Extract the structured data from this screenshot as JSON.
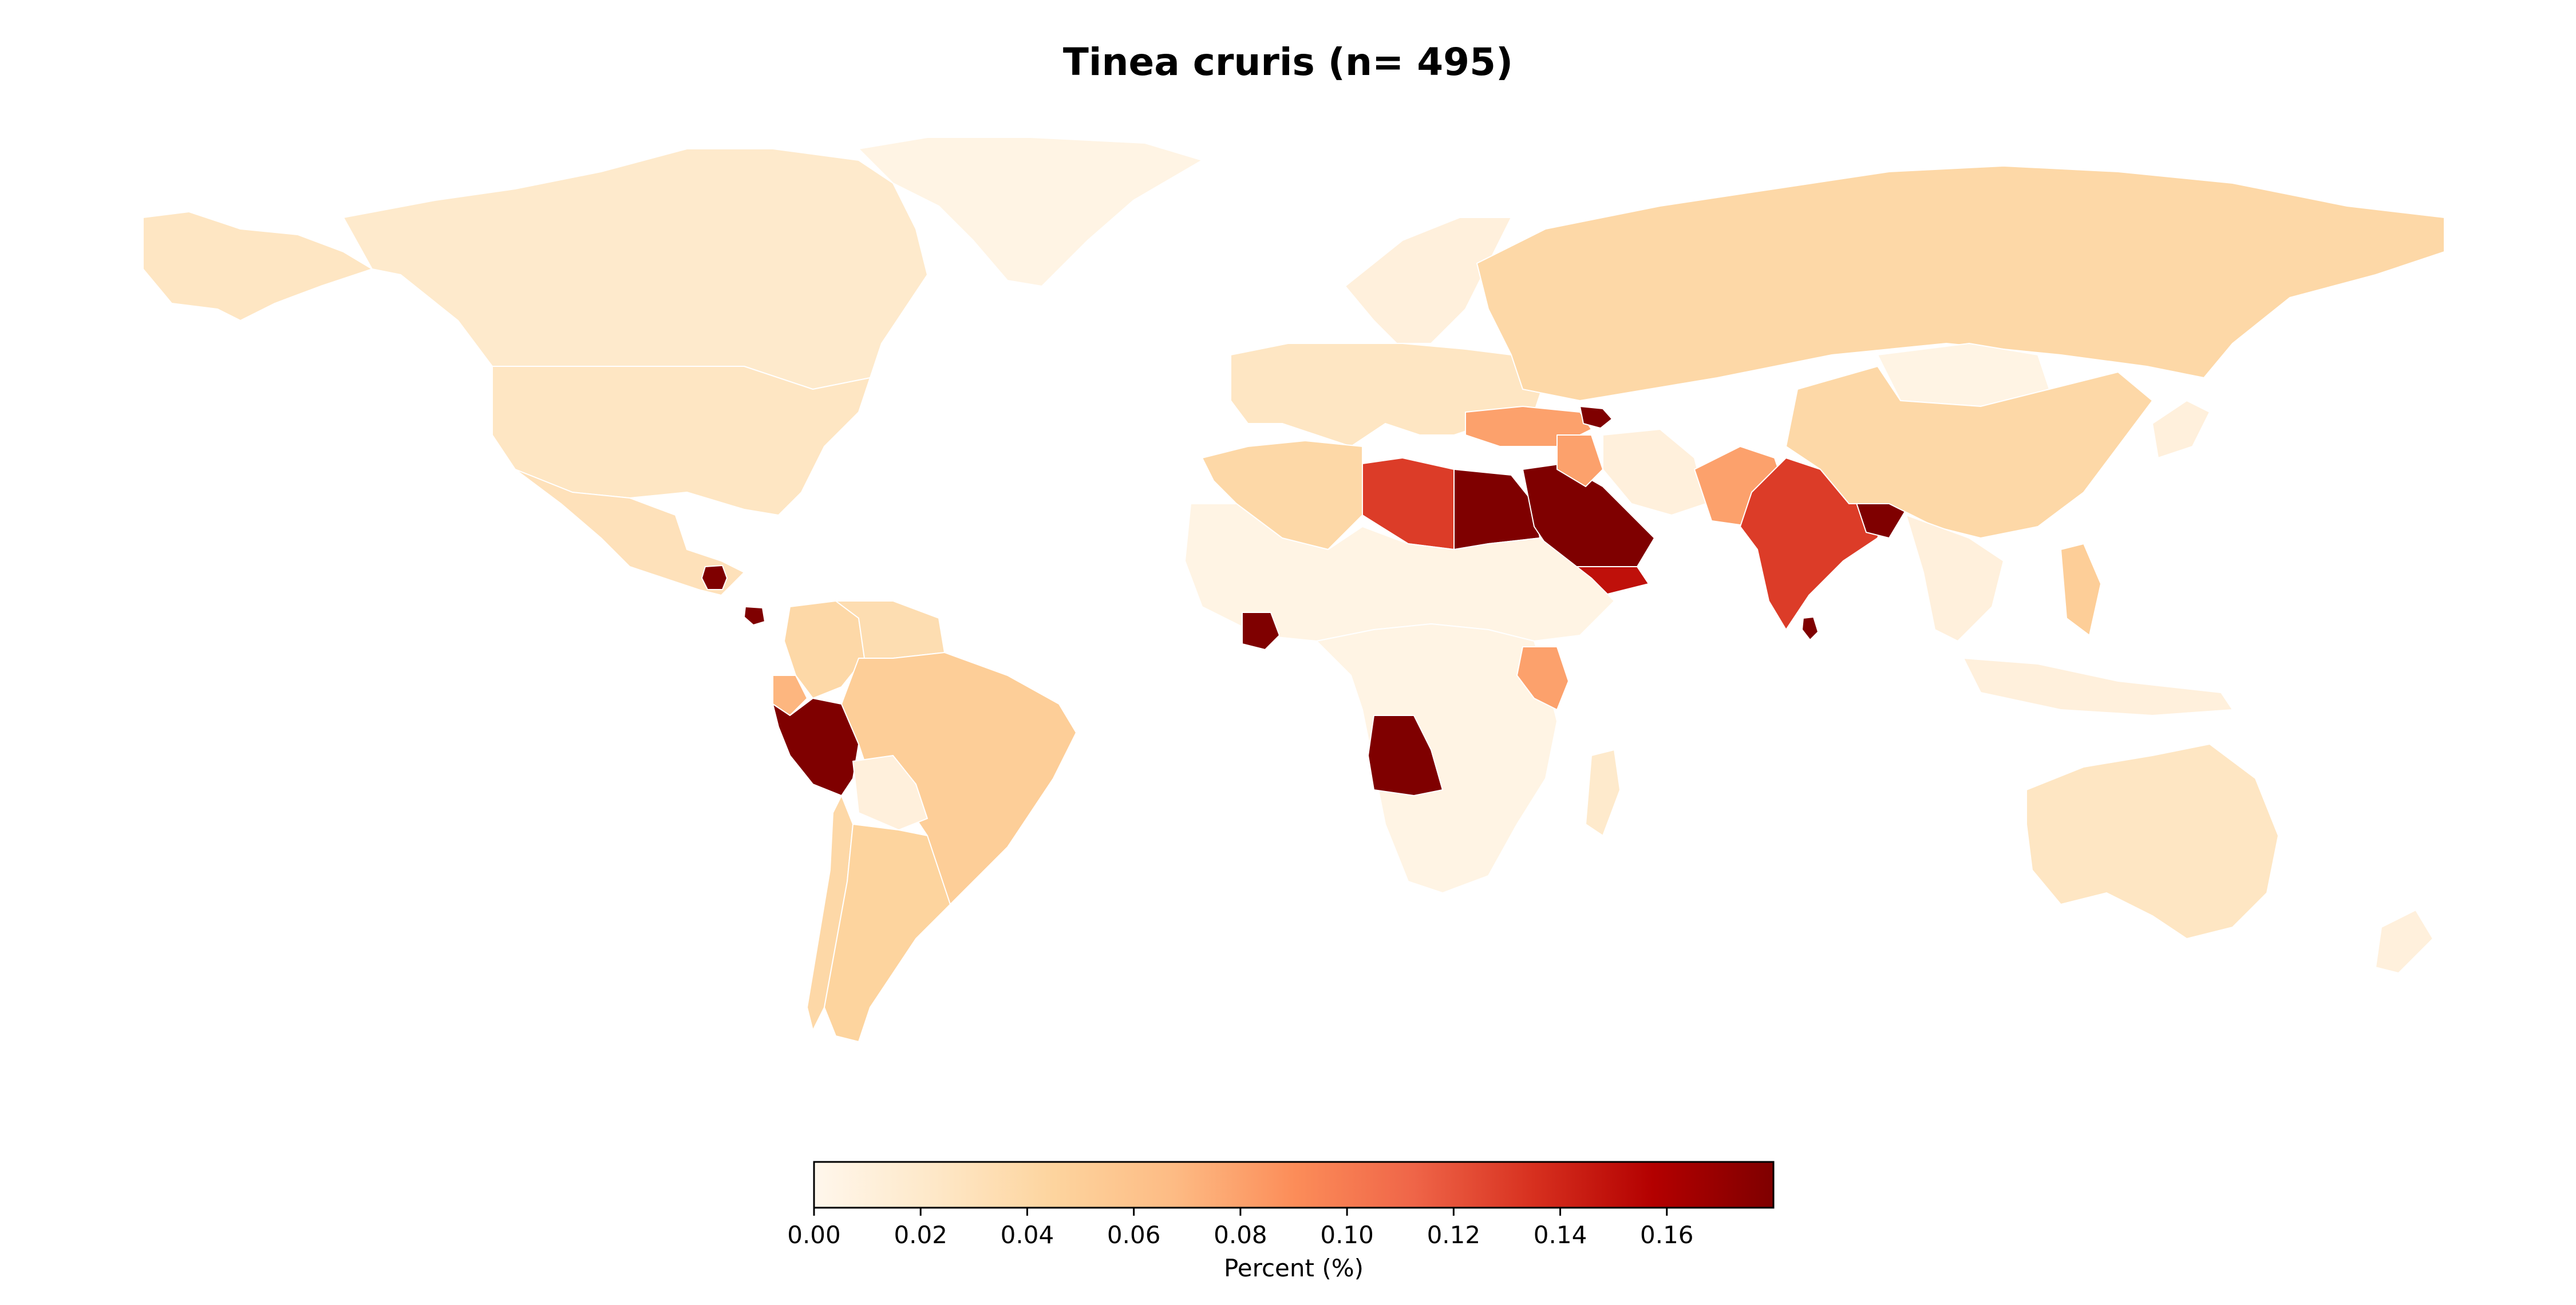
{
  "title": "Tinea cruris (n= 495)",
  "colorbar": {
    "label": "Percent (%)",
    "min": 0.0,
    "max": 0.18,
    "ticks": [
      "0.00",
      "0.02",
      "0.04",
      "0.06",
      "0.08",
      "0.10",
      "0.12",
      "0.14",
      "0.16"
    ],
    "colormap": "OrRd",
    "stops": [
      "#fff7ec",
      "#fee8c8",
      "#fdd49e",
      "#fdbb84",
      "#fc8d59",
      "#ef6548",
      "#d7301f",
      "#b30000",
      "#7f0000"
    ]
  },
  "regions": [
    {
      "id": "canada",
      "value": 0.02
    },
    {
      "id": "greenland",
      "value": 0.005
    },
    {
      "id": "usa",
      "value": 0.025
    },
    {
      "id": "alaska",
      "value": 0.025
    },
    {
      "id": "mexico",
      "value": 0.03
    },
    {
      "id": "guatemala",
      "value": 0.18
    },
    {
      "id": "panama",
      "value": 0.18
    },
    {
      "id": "colombia",
      "value": 0.04
    },
    {
      "id": "venezuela",
      "value": 0.035
    },
    {
      "id": "ecuador",
      "value": 0.07
    },
    {
      "id": "peru",
      "value": 0.18
    },
    {
      "id": "brazil",
      "value": 0.05
    },
    {
      "id": "bolivia",
      "value": 0.01
    },
    {
      "id": "argentina",
      "value": 0.045
    },
    {
      "id": "chile",
      "value": 0.04
    },
    {
      "id": "europe",
      "value": 0.025
    },
    {
      "id": "scandinavia",
      "value": 0.01
    },
    {
      "id": "russia",
      "value": 0.04
    },
    {
      "id": "turkey",
      "value": 0.08
    },
    {
      "id": "azerbaijan",
      "value": 0.18
    },
    {
      "id": "algeria",
      "value": 0.04
    },
    {
      "id": "libya",
      "value": 0.13
    },
    {
      "id": "egypt",
      "value": 0.18
    },
    {
      "id": "saudi_arabia",
      "value": 0.18
    },
    {
      "id": "yemen",
      "value": 0.15
    },
    {
      "id": "iraq",
      "value": 0.08
    },
    {
      "id": "iran",
      "value": 0.01
    },
    {
      "id": "pakistan",
      "value": 0.08
    },
    {
      "id": "india",
      "value": 0.13
    },
    {
      "id": "bangladesh",
      "value": 0.18
    },
    {
      "id": "sri_lanka",
      "value": 0.18
    },
    {
      "id": "china",
      "value": 0.04
    },
    {
      "id": "mongolia",
      "value": 0.005
    },
    {
      "id": "japan",
      "value": 0.01
    },
    {
      "id": "southeast_asia",
      "value": 0.01
    },
    {
      "id": "philippines",
      "value": 0.05
    },
    {
      "id": "west_africa",
      "value": 0.005
    },
    {
      "id": "cote_divoire",
      "value": 0.18
    },
    {
      "id": "kenya",
      "value": 0.08
    },
    {
      "id": "angola",
      "value": 0.18
    },
    {
      "id": "central_africa",
      "value": 0.005
    },
    {
      "id": "madagascar",
      "value": 0.02
    },
    {
      "id": "australia",
      "value": 0.025
    },
    {
      "id": "new_zealand",
      "value": 0.01
    },
    {
      "id": "indonesia",
      "value": 0.01
    }
  ]
}
